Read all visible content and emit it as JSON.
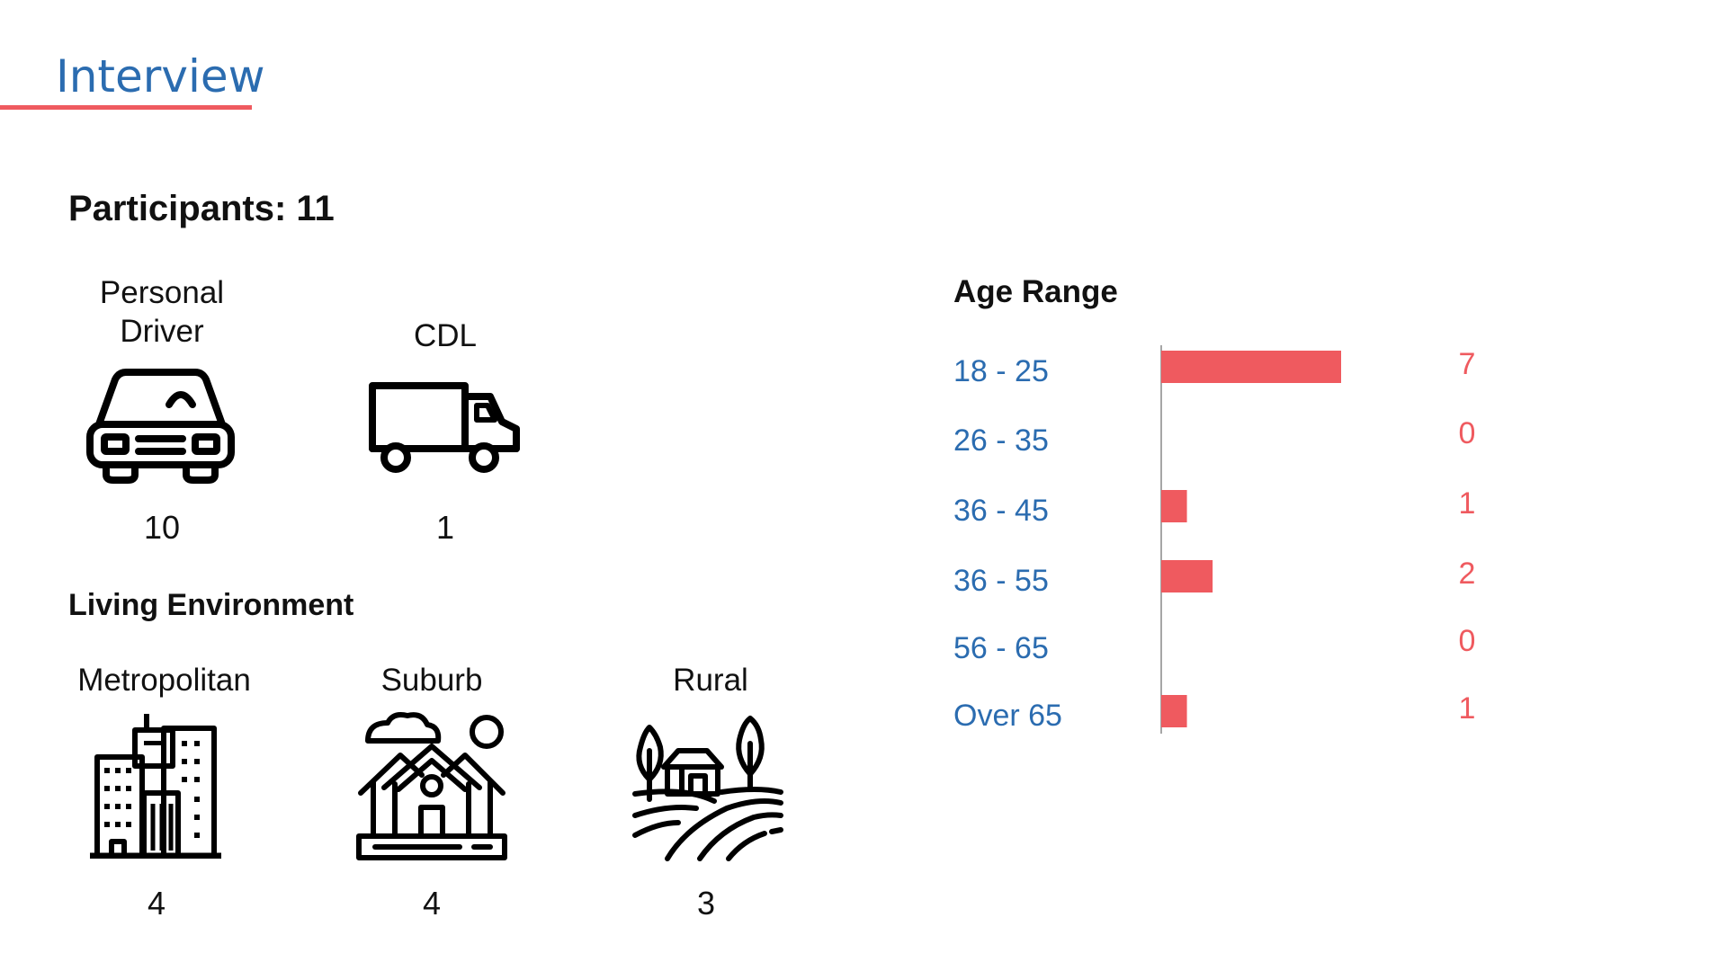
{
  "header": {
    "title": "Interview"
  },
  "participants": {
    "label": "Participants: 11"
  },
  "drivers": [
    {
      "label": "Personal\nDriver",
      "count": "10",
      "icon": "car-icon"
    },
    {
      "label": "CDL",
      "count": "1",
      "icon": "truck-icon"
    }
  ],
  "living": {
    "heading": "Living Environment",
    "items": [
      {
        "label": "Metropolitan",
        "count": "4",
        "icon": "city-buildings-icon"
      },
      {
        "label": "Suburb",
        "count": "4",
        "icon": "suburb-houses-icon"
      },
      {
        "label": "Rural",
        "count": "3",
        "icon": "rural-farm-icon"
      }
    ]
  },
  "colors": {
    "accent": "#ef5a5f",
    "blue": "#2b6cb0",
    "text": "#111111"
  },
  "chart_data": {
    "type": "bar",
    "orientation": "horizontal",
    "title": "Age Range",
    "categories": [
      "18 - 25",
      "26 - 35",
      "36 - 45",
      "36 - 55",
      "56 - 65",
      "Over 65"
    ],
    "values": [
      7,
      0,
      1,
      2,
      0,
      1
    ],
    "xlim": [
      0,
      7
    ],
    "bar_color": "#ef5a5f",
    "category_color": "#2b6cb0",
    "value_label_color": "#ef5a5f",
    "grid": false
  }
}
